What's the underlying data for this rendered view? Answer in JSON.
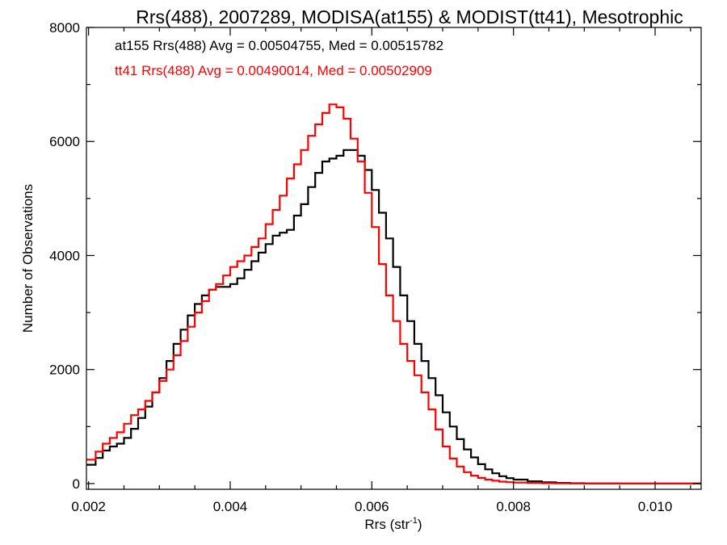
{
  "chart_data": {
    "type": "line",
    "title": "Rrs(488), 2007289, MODISA(at155) & MODIST(tt41), Mesotrophic",
    "xlabel": "Rrs (str",
    "xlabel_sup": "-1",
    "xlabel_close": ")",
    "ylabel": "Number of Observations",
    "xlim": [
      0.00197,
      0.01065
    ],
    "ylim": [
      -100,
      8000
    ],
    "x_ticks": [
      0.002,
      0.004,
      0.006,
      0.008,
      0.01
    ],
    "x_tick_labels": [
      "0.002",
      "0.004",
      "0.006",
      "0.008",
      "0.010"
    ],
    "y_ticks": [
      0,
      2000,
      4000,
      6000,
      8000
    ],
    "y_tick_labels": [
      "0",
      "2000",
      "4000",
      "6000",
      "8000"
    ],
    "grid": false,
    "annotations": [
      {
        "text": "at155 Rrs(488) Avg = 0.00504755, Med = 0.00515782",
        "color": "#000000"
      },
      {
        "text": "tt41 Rrs(488) Avg = 0.00490014, Med = 0.00502909",
        "color": "#ff0000"
      }
    ],
    "series": [
      {
        "color": "#000000",
        "points": [
          [
            0.00197,
            330
          ],
          [
            0.0021,
            450
          ],
          [
            0.0022,
            580
          ],
          [
            0.0023,
            650
          ],
          [
            0.0024,
            700
          ],
          [
            0.0025,
            800
          ],
          [
            0.0026,
            960
          ],
          [
            0.0027,
            1150
          ],
          [
            0.0028,
            1350
          ],
          [
            0.0029,
            1600
          ],
          [
            0.003,
            1850
          ],
          [
            0.0031,
            2150
          ],
          [
            0.0032,
            2450
          ],
          [
            0.0033,
            2700
          ],
          [
            0.0034,
            2950
          ],
          [
            0.0035,
            3150
          ],
          [
            0.0036,
            3300
          ],
          [
            0.0037,
            3400
          ],
          [
            0.0038,
            3450
          ],
          [
            0.0039,
            3450
          ],
          [
            0.004,
            3500
          ],
          [
            0.0041,
            3600
          ],
          [
            0.0042,
            3750
          ],
          [
            0.0043,
            3900
          ],
          [
            0.0044,
            4050
          ],
          [
            0.0045,
            4200
          ],
          [
            0.0046,
            4350
          ],
          [
            0.0047,
            4400
          ],
          [
            0.0048,
            4450
          ],
          [
            0.0049,
            4700
          ],
          [
            0.005,
            4900
          ],
          [
            0.0051,
            5200
          ],
          [
            0.0052,
            5450
          ],
          [
            0.0053,
            5650
          ],
          [
            0.0054,
            5700
          ],
          [
            0.0055,
            5750
          ],
          [
            0.0056,
            5850
          ],
          [
            0.0057,
            5850
          ],
          [
            0.0058,
            5750
          ],
          [
            0.0059,
            5500
          ],
          [
            0.006,
            5150
          ],
          [
            0.0061,
            4750
          ],
          [
            0.0062,
            4300
          ],
          [
            0.0063,
            3800
          ],
          [
            0.0064,
            3300
          ],
          [
            0.0065,
            2850
          ],
          [
            0.0066,
            2450
          ],
          [
            0.0067,
            2150
          ],
          [
            0.0068,
            1850
          ],
          [
            0.0069,
            1550
          ],
          [
            0.007,
            1250
          ],
          [
            0.0071,
            1000
          ],
          [
            0.0072,
            780
          ],
          [
            0.0073,
            600
          ],
          [
            0.0074,
            460
          ],
          [
            0.0075,
            340
          ],
          [
            0.0076,
            250
          ],
          [
            0.0077,
            180
          ],
          [
            0.0078,
            130
          ],
          [
            0.0079,
            95
          ],
          [
            0.008,
            70
          ],
          [
            0.0082,
            40
          ],
          [
            0.0084,
            22
          ],
          [
            0.0086,
            12
          ],
          [
            0.0088,
            6
          ],
          [
            0.009,
            3
          ],
          [
            0.0095,
            1
          ],
          [
            0.01,
            0
          ],
          [
            0.01065,
            0
          ]
        ]
      },
      {
        "color": "#ff0000",
        "points": [
          [
            0.00197,
            420
          ],
          [
            0.0021,
            560
          ],
          [
            0.0022,
            700
          ],
          [
            0.0023,
            800
          ],
          [
            0.0024,
            900
          ],
          [
            0.0025,
            1050
          ],
          [
            0.0026,
            1200
          ],
          [
            0.0027,
            1300
          ],
          [
            0.0028,
            1450
          ],
          [
            0.0029,
            1600
          ],
          [
            0.003,
            1800
          ],
          [
            0.0031,
            2000
          ],
          [
            0.0032,
            2250
          ],
          [
            0.0033,
            2500
          ],
          [
            0.0034,
            2750
          ],
          [
            0.0035,
            3000
          ],
          [
            0.0036,
            3200
          ],
          [
            0.0037,
            3400
          ],
          [
            0.0038,
            3500
          ],
          [
            0.0039,
            3650
          ],
          [
            0.004,
            3800
          ],
          [
            0.0041,
            3900
          ],
          [
            0.0042,
            4000
          ],
          [
            0.0043,
            4150
          ],
          [
            0.0044,
            4300
          ],
          [
            0.0045,
            4550
          ],
          [
            0.0046,
            4800
          ],
          [
            0.0047,
            5050
          ],
          [
            0.0048,
            5350
          ],
          [
            0.0049,
            5600
          ],
          [
            0.005,
            5850
          ],
          [
            0.0051,
            6100
          ],
          [
            0.0052,
            6300
          ],
          [
            0.0053,
            6500
          ],
          [
            0.0054,
            6650
          ],
          [
            0.0055,
            6600
          ],
          [
            0.0056,
            6400
          ],
          [
            0.0057,
            6050
          ],
          [
            0.0058,
            5650
          ],
          [
            0.0059,
            5100
          ],
          [
            0.006,
            4500
          ],
          [
            0.0061,
            3850
          ],
          [
            0.0062,
            3300
          ],
          [
            0.0063,
            2850
          ],
          [
            0.0064,
            2450
          ],
          [
            0.0065,
            2150
          ],
          [
            0.0066,
            1900
          ],
          [
            0.0067,
            1600
          ],
          [
            0.0068,
            1300
          ],
          [
            0.0069,
            950
          ],
          [
            0.007,
            650
          ],
          [
            0.0071,
            440
          ],
          [
            0.0072,
            300
          ],
          [
            0.0073,
            200
          ],
          [
            0.0074,
            140
          ],
          [
            0.0075,
            100
          ],
          [
            0.0076,
            70
          ],
          [
            0.0077,
            50
          ],
          [
            0.0078,
            35
          ],
          [
            0.0079,
            25
          ],
          [
            0.008,
            18
          ],
          [
            0.0082,
            10
          ],
          [
            0.0084,
            6
          ],
          [
            0.0086,
            3
          ],
          [
            0.0088,
            2
          ],
          [
            0.009,
            1
          ],
          [
            0.0095,
            0
          ],
          [
            0.01,
            0
          ],
          [
            0.01065,
            0
          ]
        ]
      }
    ]
  }
}
